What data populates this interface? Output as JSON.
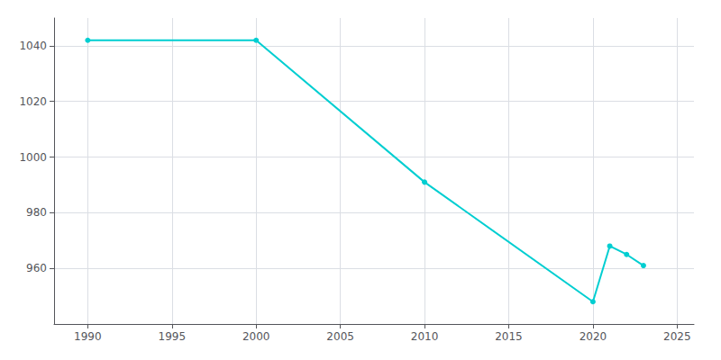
{
  "chart_data": {
    "type": "line",
    "x": [
      1990,
      2000,
      2010,
      2020,
      2021,
      2022,
      2023
    ],
    "values": [
      1042,
      1042,
      991,
      948,
      968,
      965,
      961
    ],
    "color": "#00CED1",
    "marker": "circle",
    "xlim": [
      1988,
      2026
    ],
    "xticks": [
      1990,
      1995,
      2000,
      2005,
      2010,
      2015,
      2020,
      2025
    ],
    "ylim": [
      940,
      1050
    ],
    "yticks": [
      960,
      980,
      1000,
      1020,
      1040
    ],
    "grid": true
  }
}
